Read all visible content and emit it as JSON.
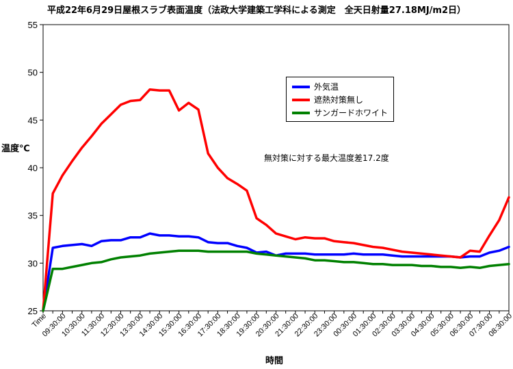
{
  "chart_data": {
    "type": "line",
    "title": "平成22年6月29日屋根スラブ表面温度（法政大学建築工学科による測定　全天日射量27.18MJ/m2日）",
    "xlabel": "時間",
    "ylabel": "温度℃",
    "annotation": "無対策に対する最大温度差17.2度",
    "ylim": [
      25,
      55
    ],
    "yticks": [
      25,
      30,
      35,
      40,
      45,
      50,
      55
    ],
    "grid": "none",
    "legend_position": "upper-center-right",
    "x": [
      "Time",
      "09:00",
      "09:30",
      "10:00",
      "10:30",
      "11:00",
      "11:30",
      "12:00",
      "12:30",
      "13:00",
      "13:30",
      "14:00",
      "14:30",
      "15:00",
      "15:30",
      "16:00",
      "16:30",
      "17:00",
      "17:30",
      "18:00",
      "18:30",
      "19:00",
      "19:30",
      "20:00",
      "20:30",
      "21:00",
      "21:30",
      "22:00",
      "22:30",
      "23:00",
      "23:30",
      "00:00",
      "00:30",
      "01:00",
      "01:30",
      "02:00",
      "02:30",
      "03:00",
      "03:30",
      "04:00",
      "04:30",
      "05:00",
      "05:30",
      "06:00",
      "06:30",
      "07:00",
      "07:30",
      "08:00",
      "08:30"
    ],
    "xtick_labels": [
      "Time",
      "09:30:00",
      "10:30:00",
      "11:30:00",
      "12:30:00",
      "13:30:00",
      "14:30:00",
      "15:30:00",
      "16:30:00",
      "17:30:00",
      "18:30:00",
      "19:30:00",
      "20:30:00",
      "21:30:00",
      "22:30:00",
      "23:30:00",
      "00:30:00",
      "01:30:00",
      "02:30:00",
      "03:30:00",
      "04:30:00",
      "05:30:00",
      "06:30:00",
      "07:30:00",
      "08:30:00"
    ],
    "series": [
      {
        "name": "外気温",
        "color": "#0000ff",
        "values": [
          25,
          31.6,
          31.8,
          31.9,
          32.0,
          31.8,
          32.3,
          32.4,
          32.4,
          32.7,
          32.7,
          33.1,
          32.9,
          32.9,
          32.8,
          32.8,
          32.7,
          32.2,
          32.1,
          32.1,
          31.8,
          31.6,
          31.1,
          31.2,
          30.8,
          31.0,
          31.0,
          31.0,
          30.9,
          30.9,
          30.9,
          30.9,
          31.0,
          30.9,
          30.9,
          30.9,
          30.8,
          30.7,
          30.7,
          30.7,
          30.7,
          30.7,
          30.7,
          30.6,
          30.7,
          30.7,
          31.1,
          31.3,
          31.7
        ]
      },
      {
        "name": "遮熱対策無し",
        "color": "#ff0000",
        "values": [
          25,
          37.3,
          39.2,
          40.7,
          42.1,
          43.3,
          44.6,
          45.6,
          46.6,
          47.0,
          47.1,
          48.2,
          48.1,
          48.1,
          46.0,
          46.8,
          46.1,
          41.5,
          40.0,
          38.9,
          38.3,
          37.6,
          34.7,
          34.0,
          33.1,
          32.8,
          32.5,
          32.7,
          32.6,
          32.6,
          32.3,
          32.2,
          32.1,
          31.9,
          31.7,
          31.6,
          31.4,
          31.2,
          31.1,
          31.0,
          30.9,
          30.8,
          30.7,
          30.6,
          31.3,
          31.2,
          32.9,
          34.5,
          36.9
        ]
      },
      {
        "name": "サンガードホワイト",
        "color": "#008000",
        "values": [
          25,
          29.4,
          29.4,
          29.6,
          29.8,
          30.0,
          30.1,
          30.4,
          30.6,
          30.7,
          30.8,
          31.0,
          31.1,
          31.2,
          31.3,
          31.3,
          31.3,
          31.2,
          31.2,
          31.2,
          31.2,
          31.2,
          31.0,
          30.9,
          30.8,
          30.7,
          30.6,
          30.5,
          30.3,
          30.3,
          30.2,
          30.1,
          30.1,
          30.0,
          29.9,
          29.9,
          29.8,
          29.8,
          29.8,
          29.7,
          29.7,
          29.6,
          29.6,
          29.5,
          29.6,
          29.5,
          29.7,
          29.8,
          29.9
        ]
      }
    ]
  }
}
